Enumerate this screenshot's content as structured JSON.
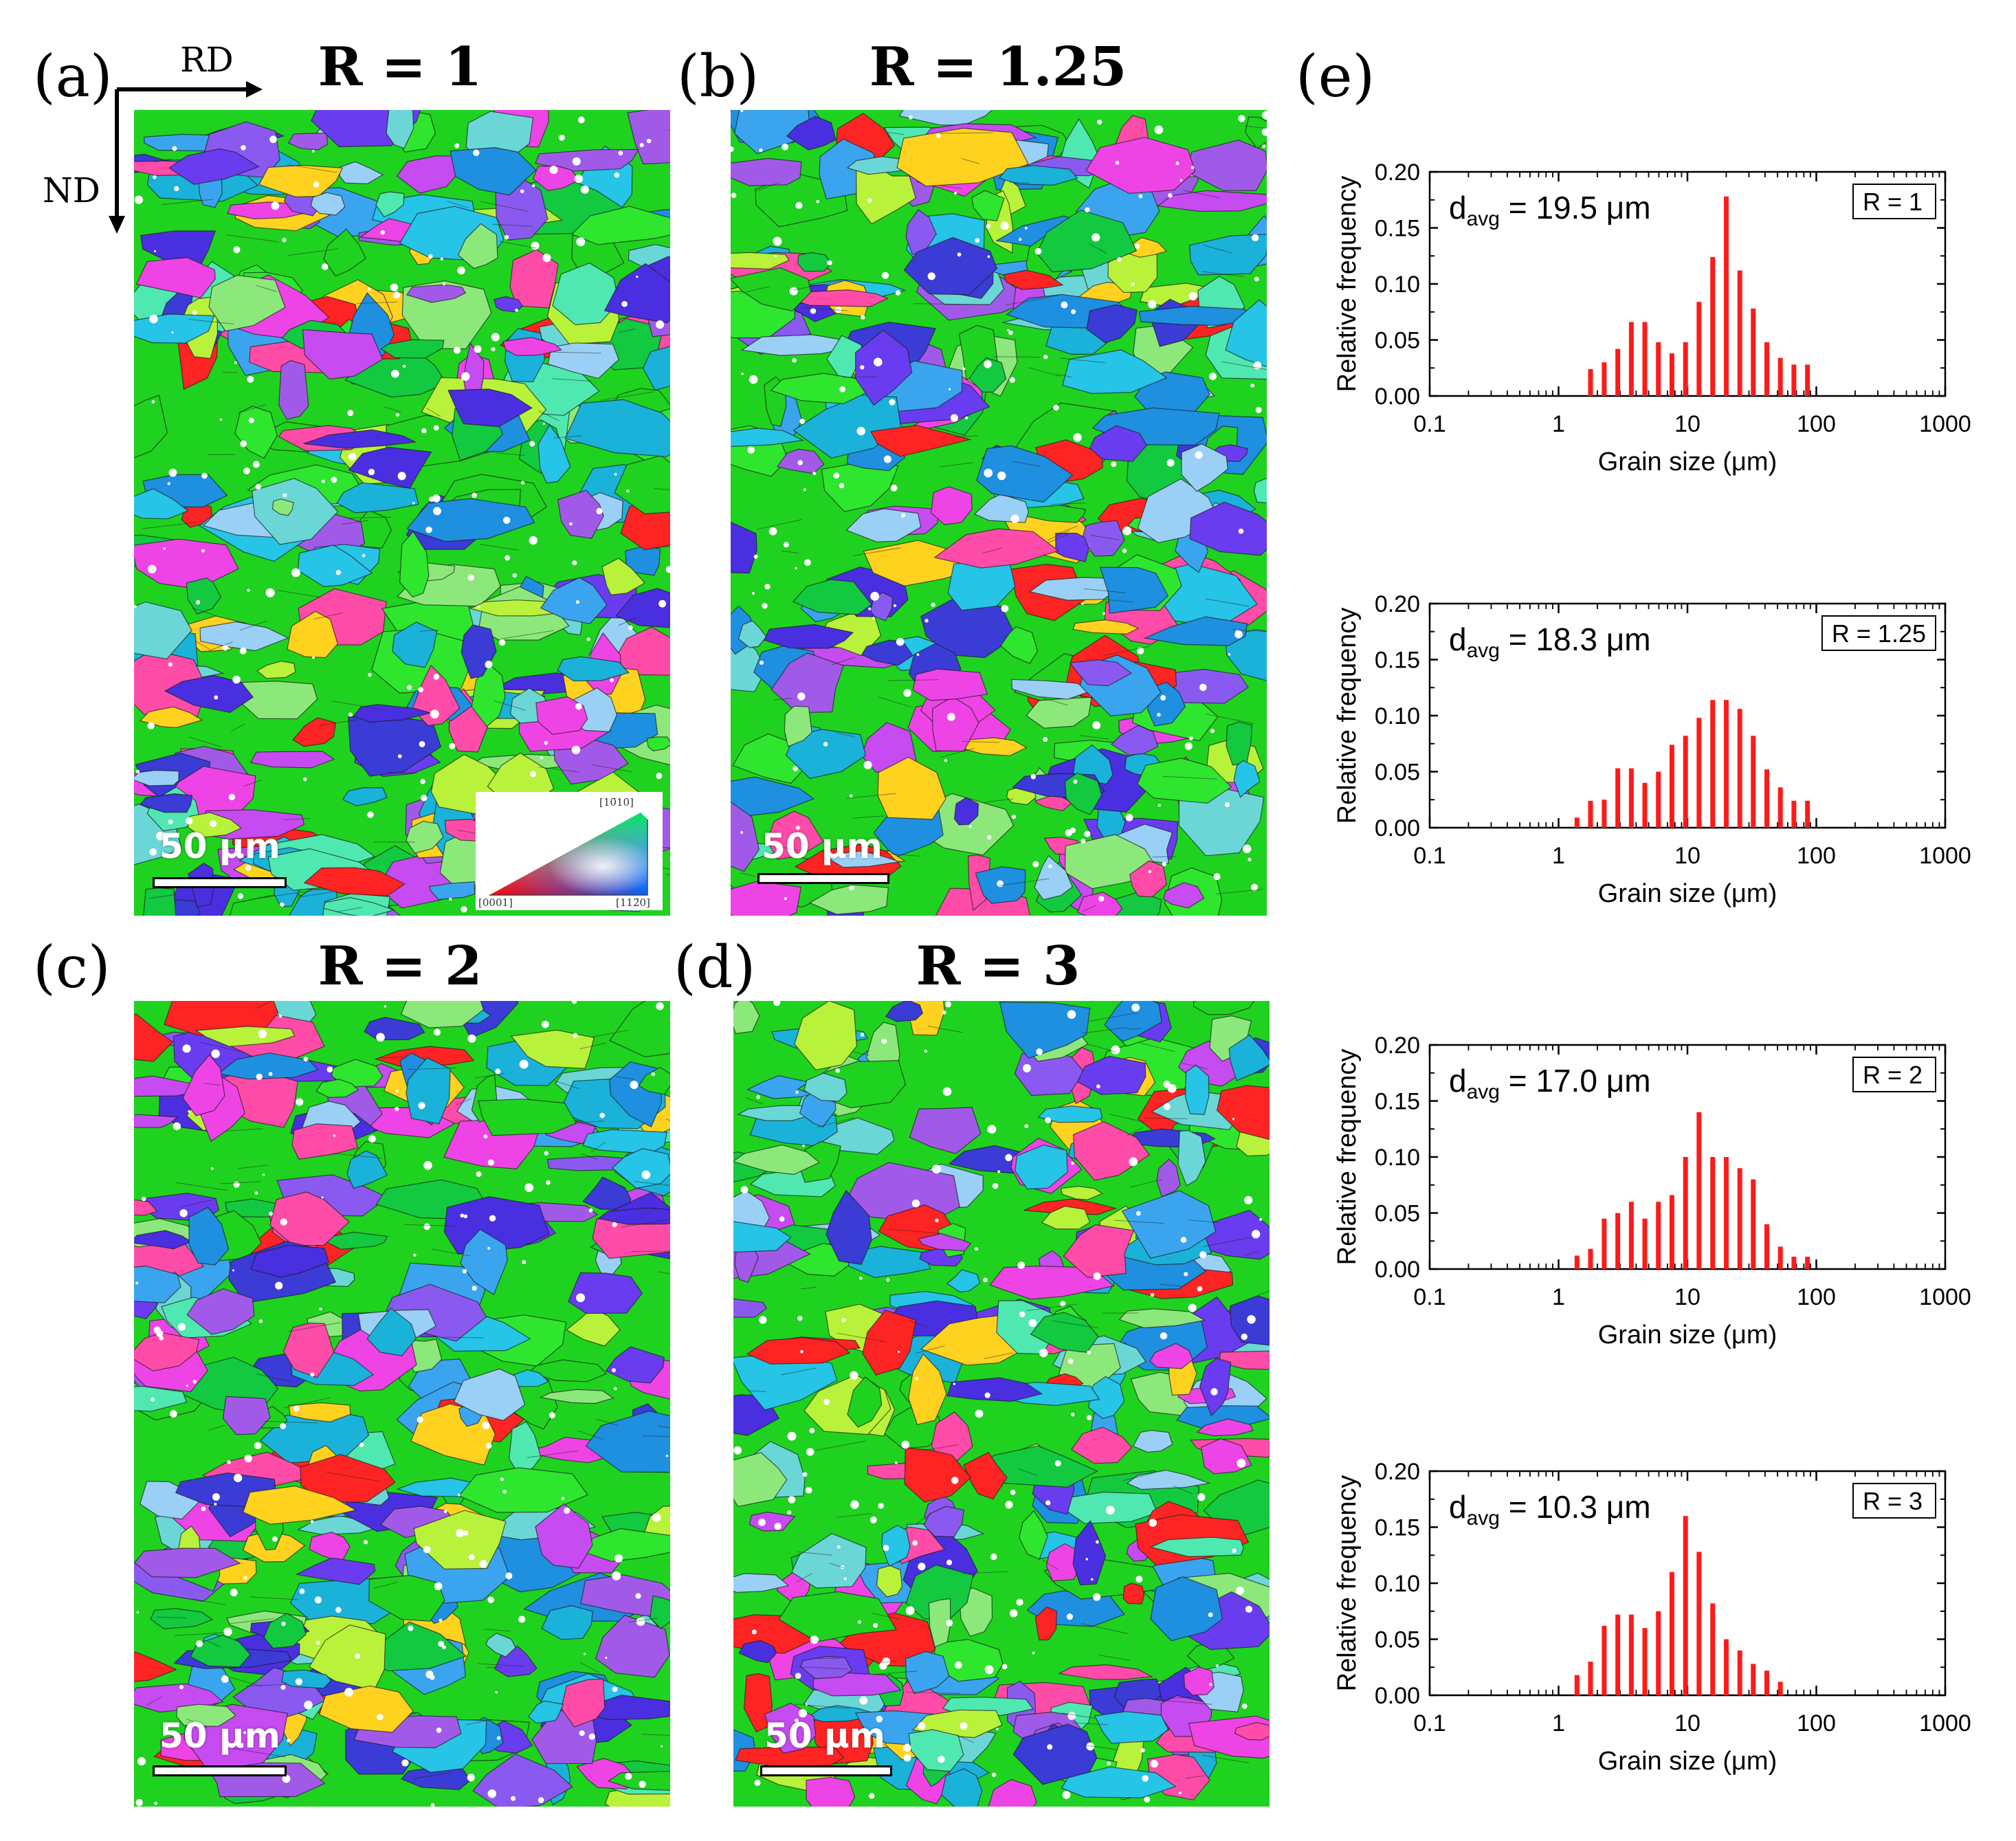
{
  "figure": {
    "panel_labels": [
      "(a)",
      "(b)",
      "(c)",
      "(d)",
      "(e)"
    ],
    "axes_labels": {
      "rd": "RD",
      "nd": "ND"
    },
    "maps": [
      {
        "title": "R = 1",
        "scale_bar": "50 μm"
      },
      {
        "title": "R = 1.25",
        "scale_bar": "50 μm"
      },
      {
        "title": "R = 2",
        "scale_bar": "50 μm"
      },
      {
        "title": "R = 3",
        "scale_bar": "50 μm"
      }
    ],
    "ipf_key": {
      "top": "[10̄10]",
      "left": "[0001]",
      "right": "[112̄0]"
    }
  },
  "colors": {
    "bar": "#ff1a1a",
    "axis": "#000000",
    "grain_palette": [
      "#1fd21f",
      "#2ee62e",
      "#12c93f",
      "#1f8fe0",
      "#3aa5ee",
      "#26c4e6",
      "#1ab2d9",
      "#3b3bd6",
      "#4a2fe0",
      "#6a3cf0",
      "#8a5af0",
      "#a15ae8",
      "#c64bf0",
      "#ee44e6",
      "#ff4ca8",
      "#ff2424",
      "#ffd21f",
      "#b9f23a",
      "#4fe8b0",
      "#6bd6d6",
      "#9ad0f5",
      "#8ce87a"
    ]
  },
  "chart_data": [
    {
      "type": "bar",
      "title": "d_avg = 19.5 μm",
      "avg_prefix": "d",
      "avg_sub": "avg",
      "avg_text": " = 19.5 μm",
      "legend": "R = 1",
      "xlabel": "Grain size (μm)",
      "ylabel": "Relative frequency",
      "xscale": "log",
      "xlim": [
        0.1,
        1000
      ],
      "ylim": [
        0,
        0.2
      ],
      "xticks": [
        "0.1",
        "1",
        "10",
        "100",
        "1000"
      ],
      "yticks": [
        "0.00",
        "0.05",
        "0.10",
        "0.15",
        "0.20"
      ],
      "x": [
        1.77,
        2.26,
        2.88,
        3.67,
        4.67,
        5.95,
        7.58,
        9.66,
        12.3,
        15.7,
        20.0,
        25.5,
        32.4,
        41.3,
        52.6,
        67.0,
        85.4
      ],
      "values": [
        0.024,
        0.03,
        0.042,
        0.066,
        0.066,
        0.048,
        0.038,
        0.048,
        0.084,
        0.124,
        0.178,
        0.112,
        0.078,
        0.048,
        0.034,
        0.028,
        0.028
      ]
    },
    {
      "type": "bar",
      "title": "d_avg = 18.3 μm",
      "avg_prefix": "d",
      "avg_sub": "avg",
      "avg_text": " = 18.3 μm",
      "legend": "R = 1.25",
      "xlabel": "Grain size (μm)",
      "ylabel": "Relative frequency",
      "xscale": "log",
      "xlim": [
        0.1,
        1000
      ],
      "ylim": [
        0,
        0.2
      ],
      "xticks": [
        "0.1",
        "1",
        "10",
        "100",
        "1000"
      ],
      "yticks": [
        "0.00",
        "0.05",
        "0.10",
        "0.15",
        "0.20"
      ],
      "x": [
        1.39,
        1.77,
        2.26,
        2.88,
        3.67,
        4.67,
        5.95,
        7.58,
        9.66,
        12.3,
        15.7,
        20.0,
        25.5,
        32.4,
        41.3,
        52.6,
        67.0,
        85.4
      ],
      "values": [
        0.009,
        0.024,
        0.025,
        0.053,
        0.053,
        0.04,
        0.05,
        0.074,
        0.082,
        0.098,
        0.114,
        0.114,
        0.106,
        0.082,
        0.052,
        0.036,
        0.024,
        0.024
      ]
    },
    {
      "type": "bar",
      "title": "d_avg = 17.0 μm",
      "avg_prefix": "d",
      "avg_sub": "avg",
      "avg_text": " = 17.0 μm",
      "legend": "R = 2",
      "xlabel": "Grain size (μm)",
      "ylabel": "Relative frequency",
      "xscale": "log",
      "xlim": [
        0.1,
        1000
      ],
      "ylim": [
        0,
        0.2
      ],
      "xticks": [
        "0.1",
        "1",
        "10",
        "100",
        "1000"
      ],
      "yticks": [
        "0.00",
        "0.05",
        "0.10",
        "0.15",
        "0.20"
      ],
      "x": [
        1.39,
        1.77,
        2.26,
        2.88,
        3.67,
        4.67,
        5.95,
        7.58,
        9.66,
        12.3,
        15.7,
        20.0,
        25.5,
        32.4,
        41.3,
        52.6,
        67.0,
        85.4
      ],
      "values": [
        0.012,
        0.018,
        0.045,
        0.05,
        0.06,
        0.045,
        0.06,
        0.066,
        0.1,
        0.14,
        0.1,
        0.1,
        0.09,
        0.08,
        0.04,
        0.02,
        0.011,
        0.011
      ]
    },
    {
      "type": "bar",
      "title": "d_avg = 10.3 μm",
      "avg_prefix": "d",
      "avg_sub": "avg",
      "avg_text": " = 10.3 μm",
      "legend": "R = 3",
      "xlabel": "Grain size (μm)",
      "ylabel": "Relative frequency",
      "xscale": "log",
      "xlim": [
        0.1,
        1000
      ],
      "ylim": [
        0,
        0.2
      ],
      "xticks": [
        "0.1",
        "1",
        "10",
        "100",
        "1000"
      ],
      "yticks": [
        "0.00",
        "0.05",
        "0.10",
        "0.15",
        "0.20"
      ],
      "x": [
        1.39,
        1.77,
        2.26,
        2.88,
        3.67,
        4.67,
        5.95,
        7.58,
        9.66,
        12.3,
        15.7,
        20.0,
        25.5,
        32.4,
        41.3,
        52.6
      ],
      "values": [
        0.018,
        0.03,
        0.062,
        0.072,
        0.072,
        0.06,
        0.075,
        0.11,
        0.16,
        0.128,
        0.082,
        0.05,
        0.04,
        0.028,
        0.022,
        0.012
      ]
    }
  ]
}
